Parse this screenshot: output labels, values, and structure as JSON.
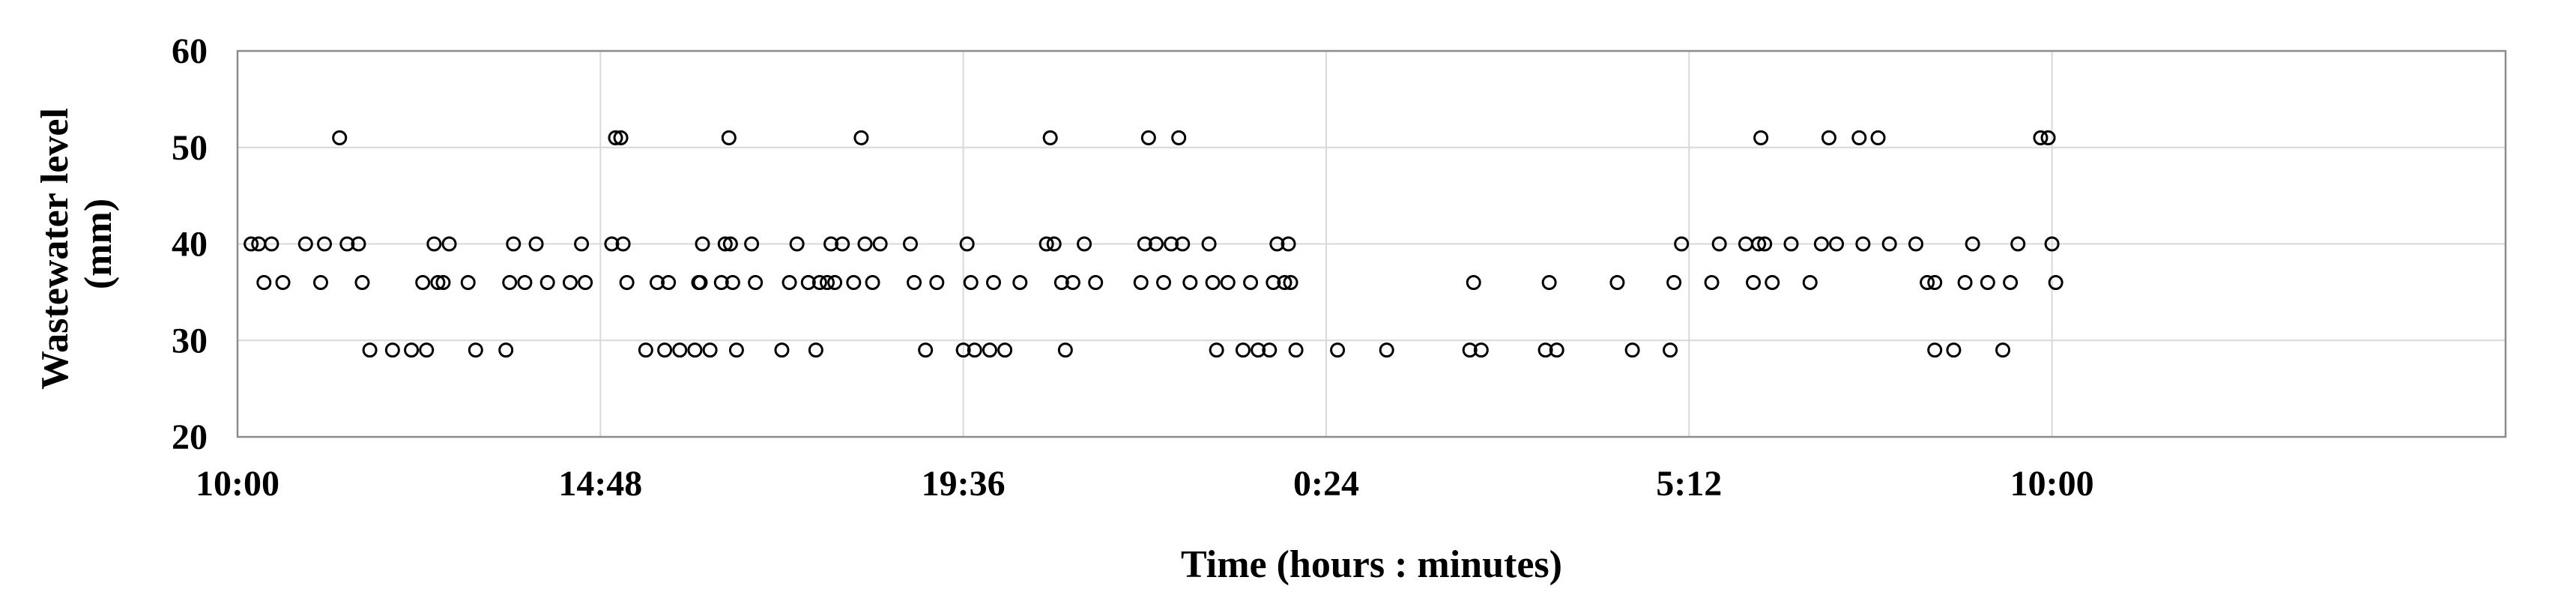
{
  "chart_data": {
    "type": "scatter",
    "title": "",
    "xlabel": "Time (hours : minutes)",
    "ylabel_line1": "Wastewater level",
    "ylabel_line2": "(mm)",
    "x_unit": "hours since 10:00",
    "xlim": [
      0,
      30
    ],
    "ylim": [
      20,
      60
    ],
    "x_ticks": [
      {
        "value": 0,
        "label": "10:00"
      },
      {
        "value": 4.8,
        "label": "14:48"
      },
      {
        "value": 9.6,
        "label": "19:36"
      },
      {
        "value": 14.4,
        "label": "0:24"
      },
      {
        "value": 19.2,
        "label": "5:12"
      },
      {
        "value": 24.0,
        "label": "10:00"
      }
    ],
    "y_ticks": [
      {
        "value": 20,
        "label": "20"
      },
      {
        "value": 30,
        "label": "30"
      },
      {
        "value": 40,
        "label": "40"
      },
      {
        "value": 50,
        "label": "50"
      },
      {
        "value": 60,
        "label": "60"
      }
    ],
    "grid": true,
    "marker": "open-circle",
    "points": [
      [
        0.18,
        40
      ],
      [
        0.28,
        40
      ],
      [
        0.35,
        36
      ],
      [
        0.45,
        40
      ],
      [
        0.6,
        36
      ],
      [
        0.9,
        40
      ],
      [
        1.1,
        36
      ],
      [
        1.15,
        40
      ],
      [
        1.35,
        51
      ],
      [
        1.45,
        40
      ],
      [
        1.6,
        40
      ],
      [
        1.65,
        36
      ],
      [
        1.75,
        29
      ],
      [
        2.05,
        29
      ],
      [
        2.3,
        29
      ],
      [
        2.45,
        36
      ],
      [
        2.5,
        29
      ],
      [
        2.65,
        36
      ],
      [
        2.6,
        40
      ],
      [
        2.72,
        36
      ],
      [
        2.8,
        40
      ],
      [
        3.05,
        36
      ],
      [
        3.15,
        29
      ],
      [
        3.55,
        29
      ],
      [
        3.6,
        36
      ],
      [
        3.65,
        40
      ],
      [
        3.8,
        36
      ],
      [
        3.95,
        40
      ],
      [
        4.1,
        36
      ],
      [
        4.4,
        36
      ],
      [
        4.55,
        40
      ],
      [
        4.6,
        36
      ],
      [
        4.95,
        40
      ],
      [
        5.0,
        51
      ],
      [
        5.07,
        51
      ],
      [
        5.1,
        40
      ],
      [
        5.15,
        36
      ],
      [
        5.4,
        29
      ],
      [
        5.55,
        36
      ],
      [
        5.65,
        29
      ],
      [
        5.7,
        36
      ],
      [
        5.85,
        29
      ],
      [
        6.05,
        29
      ],
      [
        6.1,
        36
      ],
      [
        6.12,
        36
      ],
      [
        6.15,
        40
      ],
      [
        6.25,
        29
      ],
      [
        6.4,
        36
      ],
      [
        6.45,
        40
      ],
      [
        6.5,
        51
      ],
      [
        6.52,
        40
      ],
      [
        6.55,
        36
      ],
      [
        6.6,
        29
      ],
      [
        6.8,
        40
      ],
      [
        6.85,
        36
      ],
      [
        7.2,
        29
      ],
      [
        7.3,
        36
      ],
      [
        7.4,
        40
      ],
      [
        7.55,
        36
      ],
      [
        7.65,
        29
      ],
      [
        7.7,
        36
      ],
      [
        7.8,
        36
      ],
      [
        7.85,
        40
      ],
      [
        7.9,
        36
      ],
      [
        8.0,
        40
      ],
      [
        8.15,
        36
      ],
      [
        8.25,
        51
      ],
      [
        8.3,
        40
      ],
      [
        8.4,
        36
      ],
      [
        8.5,
        40
      ],
      [
        8.9,
        40
      ],
      [
        8.95,
        36
      ],
      [
        9.1,
        29
      ],
      [
        9.25,
        36
      ],
      [
        9.6,
        29
      ],
      [
        9.65,
        40
      ],
      [
        9.7,
        36
      ],
      [
        9.75,
        29
      ],
      [
        9.95,
        29
      ],
      [
        10.0,
        36
      ],
      [
        10.15,
        29
      ],
      [
        10.35,
        36
      ],
      [
        10.7,
        40
      ],
      [
        10.75,
        51
      ],
      [
        10.8,
        40
      ],
      [
        10.9,
        36
      ],
      [
        10.95,
        29
      ],
      [
        11.05,
        36
      ],
      [
        11.2,
        40
      ],
      [
        11.35,
        36
      ],
      [
        11.95,
        36
      ],
      [
        12.0,
        40
      ],
      [
        12.05,
        51
      ],
      [
        12.15,
        40
      ],
      [
        12.25,
        36
      ],
      [
        12.35,
        40
      ],
      [
        12.45,
        51
      ],
      [
        12.5,
        40
      ],
      [
        12.6,
        36
      ],
      [
        12.85,
        40
      ],
      [
        12.95,
        29
      ],
      [
        12.9,
        36
      ],
      [
        13.1,
        36
      ],
      [
        13.3,
        29
      ],
      [
        13.4,
        36
      ],
      [
        13.5,
        29
      ],
      [
        13.65,
        29
      ],
      [
        13.7,
        36
      ],
      [
        13.75,
        40
      ],
      [
        13.85,
        36
      ],
      [
        13.9,
        40
      ],
      [
        13.93,
        36
      ],
      [
        14.0,
        29
      ],
      [
        14.55,
        29
      ],
      [
        15.2,
        29
      ],
      [
        16.3,
        29
      ],
      [
        16.35,
        36
      ],
      [
        16.45,
        29
      ],
      [
        17.3,
        29
      ],
      [
        17.35,
        36
      ],
      [
        17.45,
        29
      ],
      [
        18.25,
        36
      ],
      [
        18.45,
        29
      ],
      [
        18.95,
        29
      ],
      [
        19.0,
        36
      ],
      [
        19.1,
        40
      ],
      [
        19.5,
        36
      ],
      [
        19.6,
        40
      ],
      [
        19.95,
        40
      ],
      [
        20.05,
        36
      ],
      [
        20.12,
        40
      ],
      [
        20.15,
        51
      ],
      [
        20.2,
        40
      ],
      [
        20.3,
        36
      ],
      [
        20.55,
        40
      ],
      [
        20.8,
        36
      ],
      [
        20.95,
        40
      ],
      [
        21.05,
        51
      ],
      [
        21.15,
        40
      ],
      [
        21.45,
        51
      ],
      [
        21.5,
        40
      ],
      [
        21.7,
        51
      ],
      [
        21.85,
        40
      ],
      [
        22.2,
        40
      ],
      [
        22.35,
        36
      ],
      [
        22.45,
        36
      ],
      [
        22.45,
        29
      ],
      [
        22.7,
        29
      ],
      [
        22.85,
        36
      ],
      [
        22.95,
        40
      ],
      [
        23.15,
        36
      ],
      [
        23.35,
        29
      ],
      [
        23.45,
        36
      ],
      [
        23.55,
        40
      ],
      [
        23.85,
        51
      ],
      [
        23.95,
        51
      ],
      [
        24.0,
        40
      ],
      [
        24.05,
        36
      ]
    ]
  }
}
